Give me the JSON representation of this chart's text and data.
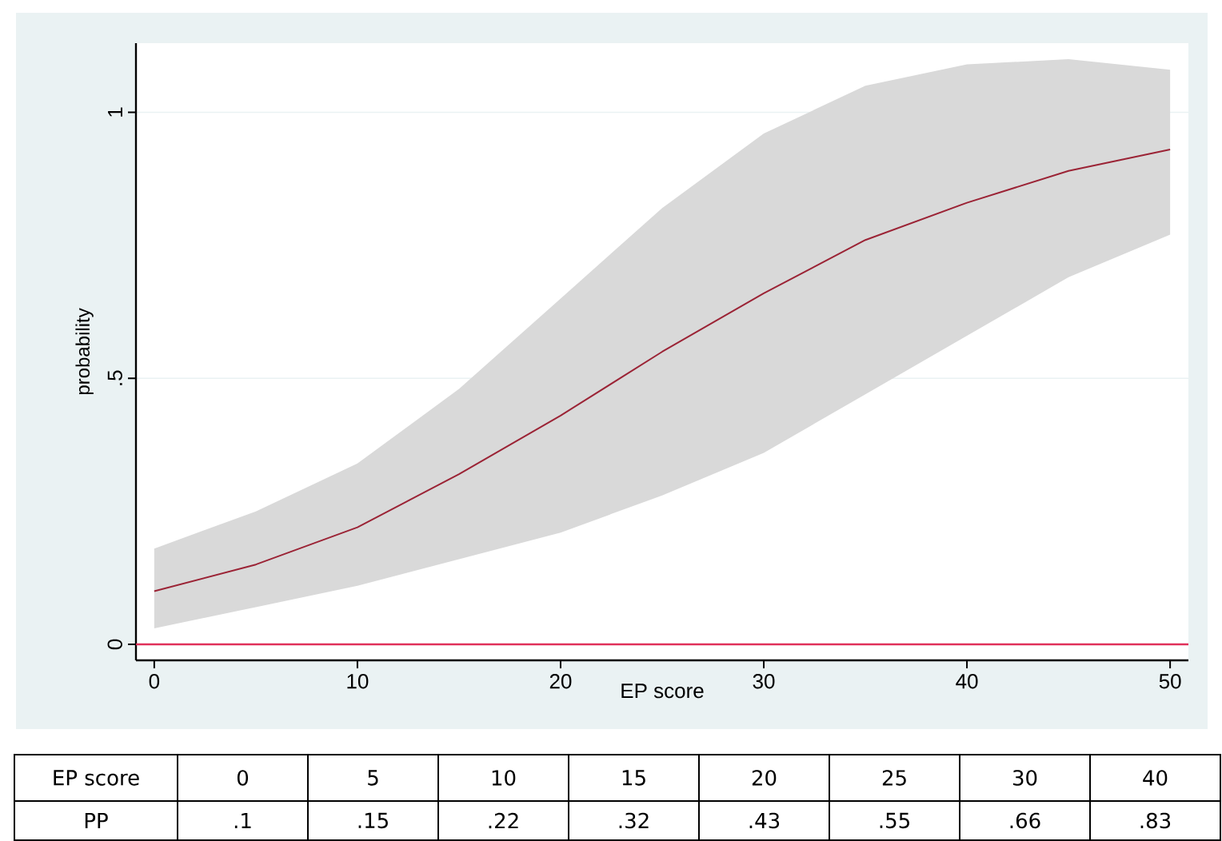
{
  "chart_data": {
    "type": "line",
    "xlabel": "EP score",
    "ylabel": "probability",
    "xlim": [
      -0.9,
      50.9
    ],
    "ylim": [
      -0.03,
      1.13
    ],
    "xticks": [
      0,
      10,
      20,
      30,
      40,
      50
    ],
    "yticks": [
      0,
      {
        "value": 0.5,
        "label": ".5"
      },
      1
    ],
    "grid": "y",
    "line_style": "solid",
    "marker": "none",
    "series": [
      {
        "color": "#9b2335",
        "x": [
          0,
          5,
          10,
          15,
          20,
          25,
          30,
          35,
          40,
          45,
          50
        ],
        "values": [
          0.1,
          0.15,
          0.22,
          0.32,
          0.43,
          0.55,
          0.66,
          0.76,
          0.83,
          0.89,
          0.93
        ],
        "lower": [
          0.03,
          0.07,
          0.11,
          0.16,
          0.21,
          0.28,
          0.36,
          0.47,
          0.58,
          0.69,
          0.77
        ],
        "upper": [
          0.18,
          0.25,
          0.34,
          0.48,
          0.65,
          0.82,
          0.96,
          1.05,
          1.09,
          1.1,
          1.08
        ]
      }
    ],
    "annotations": [
      "EP score",
      "0",
      "5",
      "10",
      "15",
      "20",
      "25",
      "30",
      "40",
      "PP",
      ".1",
      ".15",
      ".22",
      ".32",
      ".43",
      ".55",
      ".66",
      ".83"
    ],
    "ref_lines": [
      {
        "axis": "y",
        "value": 0,
        "color": "#e0305a"
      }
    ]
  }
}
